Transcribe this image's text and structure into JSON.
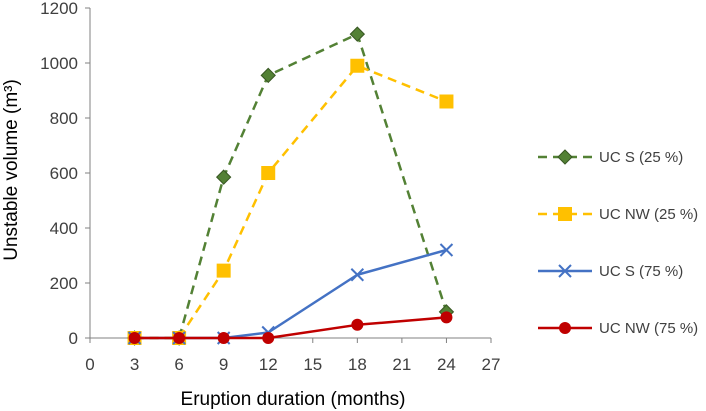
{
  "chart_data": {
    "type": "line",
    "title": "",
    "xlabel": "Eruption duration (months)",
    "ylabel": "Unstable volume (m³)",
    "xlim": [
      0,
      27
    ],
    "ylim": [
      0,
      1200
    ],
    "xticks": [
      "0",
      "3",
      "6",
      "9",
      "12",
      "15",
      "18",
      "21",
      "24",
      "27"
    ],
    "yticks": [
      "0",
      "200",
      "400",
      "600",
      "800",
      "1000",
      "1200"
    ],
    "grid": false,
    "legend_position": "right",
    "x": [
      3,
      6,
      9,
      12,
      18,
      24
    ],
    "series": [
      {
        "name": "UC S (25 %)",
        "values": [
          0,
          0,
          585,
          955,
          1105,
          95
        ],
        "color": "#538135",
        "line_style": "dashed",
        "marker": "diamond"
      },
      {
        "name": "UC NW (25 %)",
        "values": [
          0,
          0,
          245,
          600,
          990,
          860
        ],
        "color": "#FFC000",
        "line_style": "dashed",
        "marker": "square"
      },
      {
        "name": "UC S (75 %)",
        "values": [
          0,
          0,
          0,
          20,
          230,
          320
        ],
        "color": "#4472C4",
        "line_style": "solid",
        "marker": "x"
      },
      {
        "name": "UC NW (75 %)",
        "values": [
          0,
          0,
          0,
          0,
          48,
          75
        ],
        "color": "#C00000",
        "line_style": "solid",
        "marker": "circle"
      }
    ]
  }
}
